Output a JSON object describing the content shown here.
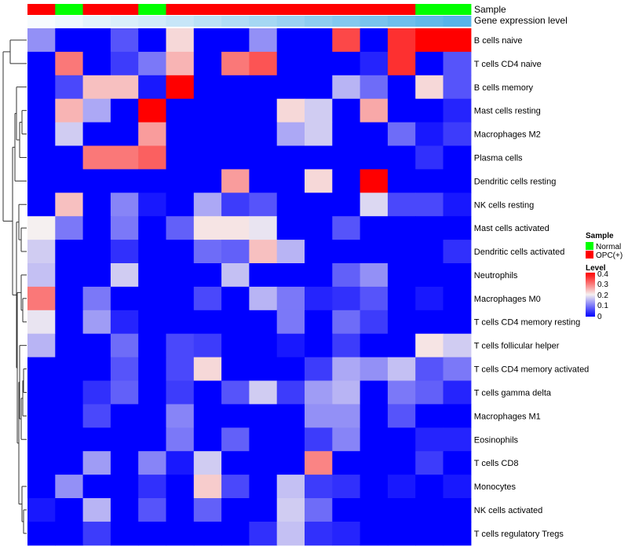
{
  "chart_data": {
    "type": "heatmap",
    "title": "",
    "annotation_labels": {
      "sample": "Sample",
      "expression": "Gene expression level"
    },
    "sample_groups": [
      "OPC(+)",
      "Normal",
      "OPC(+)",
      "OPC(+)",
      "Normal",
      "OPC(+)",
      "OPC(+)",
      "OPC(+)",
      "OPC(+)",
      "OPC(+)",
      "OPC(+)",
      "OPC(+)",
      "OPC(+)",
      "OPC(+)",
      "Normal",
      "Normal"
    ],
    "expression_levels": [
      0.03,
      0.06,
      0.1,
      0.13,
      0.16,
      0.2,
      0.24,
      0.28,
      0.32,
      0.36,
      0.4,
      0.44,
      0.48,
      0.52,
      0.56,
      0.6
    ],
    "rows": [
      "B cells naive",
      "T cells CD4 naive",
      "B cells memory",
      "Mast cells resting",
      "Macrophages M2",
      "Plasma cells",
      "Dendritic cells resting",
      "NK cells resting",
      "Mast cells activated",
      "Dendritic cells activated",
      "Neutrophils",
      "Macrophages M0",
      "T cells CD4 memory resting",
      "T cells follicular helper",
      "T cells CD4 memory activated",
      "T cells gamma delta",
      "Macrophages M1",
      "Eosinophils",
      "T cells CD8",
      "Monocytes",
      "NK cells activated",
      "T cells regulatory  Tregs"
    ],
    "values": [
      [
        0.12,
        0,
        0,
        0.07,
        0,
        0.22,
        0,
        0,
        0.12,
        0,
        0,
        0.34,
        0,
        0.36,
        0.4,
        0.4
      ],
      [
        0,
        0.3,
        0,
        0.05,
        0.1,
        0.25,
        0,
        0.3,
        0.33,
        0,
        0,
        0,
        0.03,
        0.36,
        0,
        0.07
      ],
      [
        0,
        0.06,
        0.24,
        0.24,
        0.02,
        0.4,
        0,
        0,
        0,
        0,
        0,
        0.15,
        0.09,
        0,
        0.22,
        0.07
      ],
      [
        0,
        0.25,
        0.14,
        0,
        0.4,
        0,
        0,
        0,
        0,
        0.22,
        0.17,
        0,
        0.26,
        0,
        0,
        0.03
      ],
      [
        0,
        0.17,
        0,
        0,
        0.27,
        0,
        0,
        0,
        0,
        0.14,
        0.17,
        0,
        0,
        0.09,
        0.02,
        0.05
      ],
      [
        0,
        0,
        0.3,
        0.3,
        0.32,
        0,
        0,
        0,
        0,
        0,
        0,
        0,
        0,
        0,
        0.04,
        0
      ],
      [
        0,
        0,
        0,
        0,
        0,
        0,
        0,
        0.27,
        0,
        0,
        0.22,
        0,
        0.4,
        0,
        0,
        0
      ],
      [
        0,
        0.24,
        0,
        0.11,
        0.02,
        0,
        0.14,
        0.05,
        0.07,
        0,
        0,
        0,
        0.18,
        0.06,
        0.06,
        0.02
      ],
      [
        0.2,
        0.1,
        0,
        0.1,
        0,
        0.08,
        0.21,
        0.21,
        0.19,
        0,
        0,
        0.07,
        0,
        0,
        0,
        0
      ],
      [
        0.17,
        0,
        0,
        0.04,
        0,
        0,
        0.09,
        0.08,
        0.24,
        0.15,
        0,
        0,
        0,
        0,
        0,
        0.04
      ],
      [
        0.16,
        0,
        0,
        0.17,
        0,
        0,
        0,
        0.16,
        0,
        0,
        0,
        0.08,
        0.12,
        0,
        0,
        0
      ],
      [
        0.3,
        0,
        0.1,
        0,
        0,
        0,
        0.06,
        0,
        0.15,
        0.1,
        0.03,
        0.04,
        0.07,
        0,
        0.02,
        0
      ],
      [
        0.19,
        0,
        0.13,
        0.03,
        0,
        0,
        0,
        0,
        0,
        0.1,
        0,
        0.09,
        0.05,
        0,
        0,
        0
      ],
      [
        0.15,
        0,
        0,
        0.09,
        0,
        0.06,
        0.05,
        0,
        0,
        0.02,
        0,
        0.05,
        0,
        0,
        0.21,
        0.17
      ],
      [
        0,
        0,
        0,
        0.07,
        0,
        0.06,
        0.22,
        0,
        0,
        0,
        0.05,
        0.14,
        0.12,
        0.16,
        0.07,
        0.1
      ],
      [
        0,
        0,
        0.04,
        0.08,
        0,
        0.05,
        0,
        0.07,
        0.17,
        0.05,
        0.13,
        0.15,
        0,
        0.1,
        0.08,
        0.03
      ],
      [
        0,
        0,
        0.06,
        0,
        0,
        0.11,
        0,
        0,
        0,
        0,
        0.12,
        0.12,
        0,
        0.07,
        0,
        0
      ],
      [
        0,
        0,
        0,
        0,
        0,
        0.1,
        0,
        0.08,
        0,
        0,
        0.05,
        0.11,
        0,
        0,
        0.03,
        0.03
      ],
      [
        0,
        0,
        0.13,
        0,
        0.11,
        0.02,
        0.17,
        0,
        0,
        0,
        0.29,
        0,
        0,
        0,
        0.05,
        0
      ],
      [
        0,
        0.12,
        0,
        0,
        0.04,
        0,
        0.23,
        0.06,
        0,
        0.16,
        0.05,
        0.04,
        0,
        0.02,
        0,
        0.02
      ],
      [
        0.02,
        0,
        0.15,
        0,
        0.07,
        0,
        0.08,
        0,
        0,
        0.17,
        0.09,
        0,
        0,
        0,
        0,
        0
      ],
      [
        0,
        0,
        0.05,
        0,
        0,
        0,
        0,
        0,
        0.04,
        0.16,
        0.04,
        0.03,
        0,
        0,
        0,
        0
      ]
    ],
    "color_scale": {
      "min": 0,
      "mid": 0.2,
      "max": 0.4,
      "low": "#0000ff",
      "mid_color": "#f5f0f0",
      "high": "#ff0000"
    },
    "legend": {
      "sample_title": "Sample",
      "sample_entries": [
        {
          "label": "Normal",
          "color": "#00ff00"
        },
        {
          "label": "OPC(+)",
          "color": "#ff0000"
        }
      ],
      "level_title": "Level",
      "level_ticks": [
        "0.4",
        "0.3",
        "0.2",
        "0.1",
        "0"
      ]
    },
    "dendrogram": "row clustering tree (left)"
  }
}
